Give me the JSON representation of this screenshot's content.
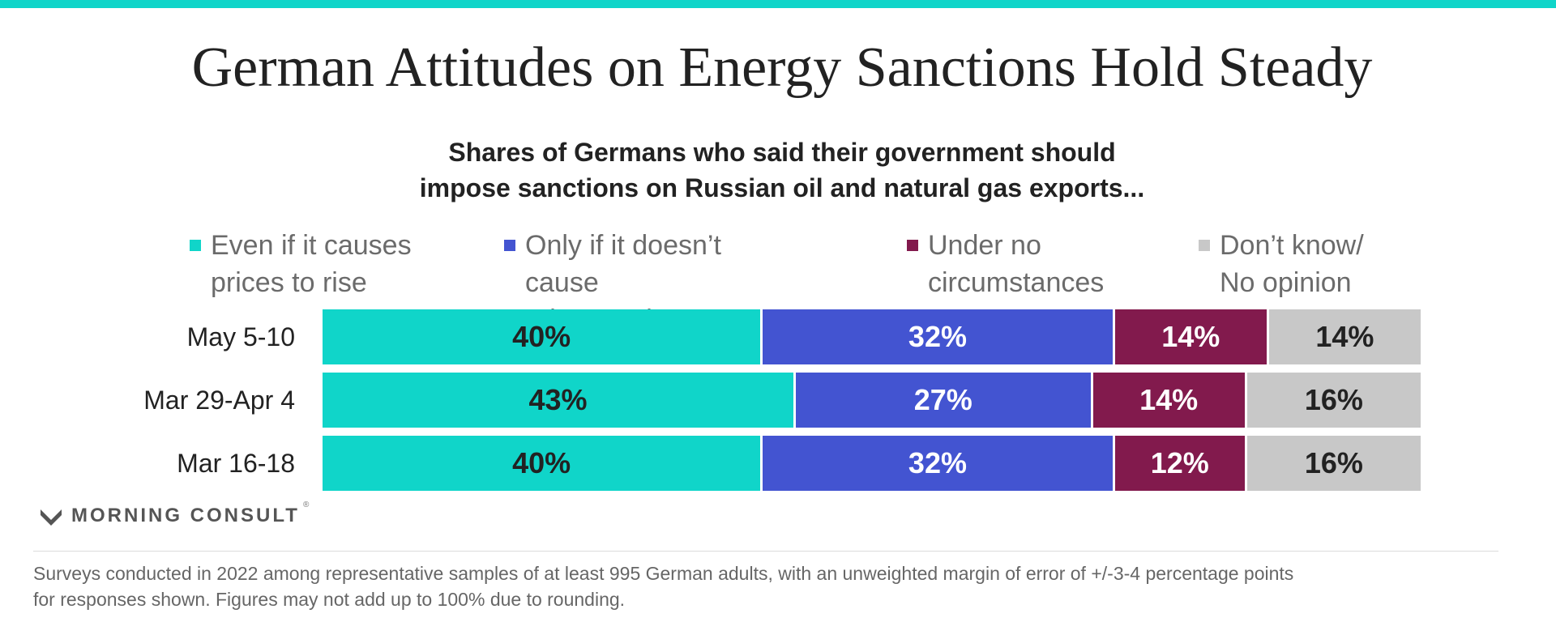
{
  "title": "German Attitudes on Energy Sanctions Hold Steady",
  "subtitle_line1": "Shares of Germans who said their government should",
  "subtitle_line2": "impose sanctions on Russian oil and natural gas exports...",
  "colors": {
    "teal": "#10d5c9",
    "blue": "#4354d1",
    "maroon": "#821a4d",
    "gray": "#c8c8c8",
    "text": "#222222"
  },
  "chart_data": {
    "type": "bar",
    "orientation": "horizontal",
    "stacked": true,
    "categories": [
      "May 5-10",
      "Mar 29-Apr 4",
      "Mar 16-18"
    ],
    "series": [
      {
        "name_line1": "Even if it causes",
        "name_line2": "prices to rise",
        "labels": [
          "40%",
          "43%",
          "40%"
        ],
        "values": [
          40,
          43,
          40
        ]
      },
      {
        "name_line1": "Only if it doesn’t cause",
        "name_line2": "prices to rise",
        "labels": [
          "32%",
          "27%",
          "32%"
        ],
        "values": [
          32,
          27,
          32
        ]
      },
      {
        "name_line1": "Under no",
        "name_line2": "circumstances",
        "labels": [
          "14%",
          "14%",
          "12%"
        ],
        "values": [
          14,
          14,
          12
        ]
      },
      {
        "name_line1": "Don’t know/",
        "name_line2": "No opinion",
        "labels": [
          "14%",
          "16%",
          "16%"
        ],
        "values": [
          14,
          16,
          16
        ]
      }
    ],
    "xlim": [
      0,
      100
    ],
    "legend": "top"
  },
  "logo_text": "MORNING CONSULT",
  "logo_mark": "®",
  "footnote_line1": "Surveys conducted in 2022 among representative samples of at least 995 German adults, with an unweighted margin of error of +/-3-4 percentage points",
  "footnote_line2": "for responses shown. Figures may not add up to 100% due to rounding."
}
